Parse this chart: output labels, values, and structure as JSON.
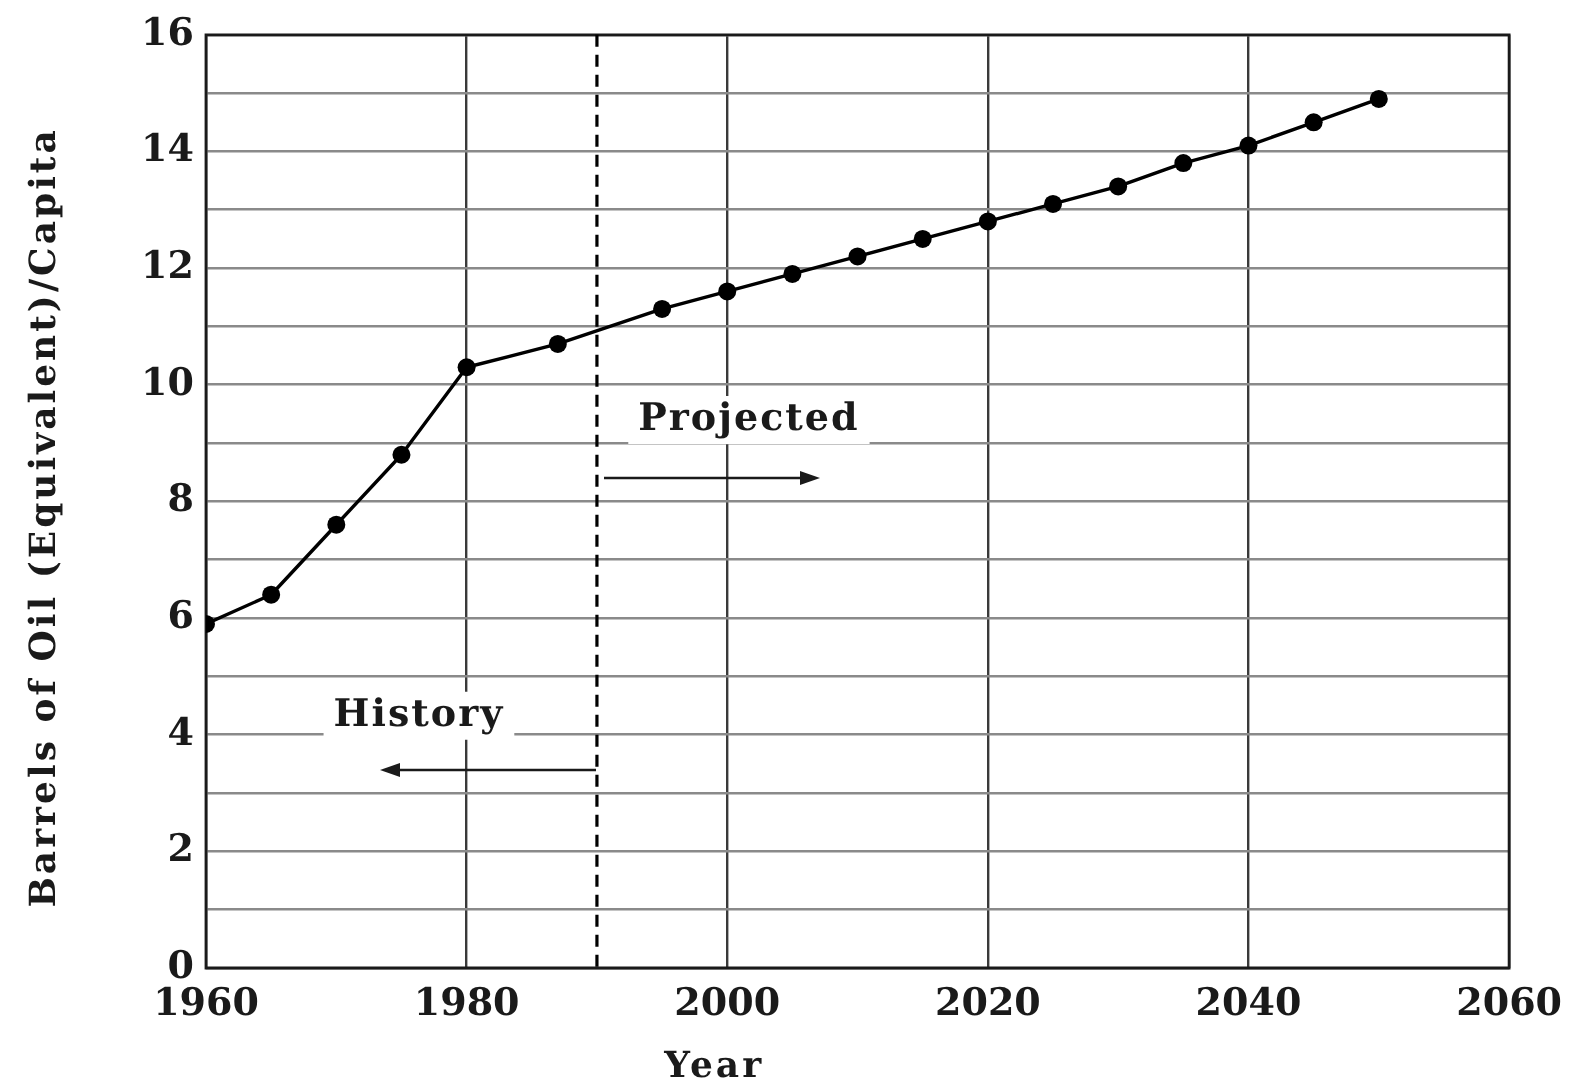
{
  "chart_data": {
    "type": "line",
    "xlabel": "Year",
    "ylabel": "Barrels of Oil (Equivalent)/Capita",
    "x": [
      1960,
      1965,
      1970,
      1975,
      1980,
      1987,
      1995,
      2000,
      2005,
      2010,
      2015,
      2020,
      2025,
      2030,
      2035,
      2040,
      2045,
      2050
    ],
    "series": [
      {
        "color": "#000000",
        "values": [
          5.9,
          6.4,
          7.6,
          8.8,
          10.3,
          10.7,
          11.3,
          11.6,
          11.9,
          12.2,
          12.5,
          12.8,
          13.1,
          13.4,
          13.8,
          14.1,
          14.5,
          14.9
        ]
      }
    ],
    "xlim": [
      1960,
      2060
    ],
    "xticks": [
      1960,
      1980,
      2000,
      2020,
      2040,
      2060
    ],
    "ylim": [
      0,
      16
    ],
    "yticks": [
      0,
      {
        "value": 1,
        "label": null
      },
      2,
      {
        "value": 3,
        "label": null
      },
      4,
      {
        "value": 5,
        "label": null
      },
      6,
      {
        "value": 7,
        "label": null
      },
      8,
      {
        "value": 9,
        "label": null
      },
      10,
      {
        "value": 11,
        "label": null
      },
      12,
      {
        "value": 13,
        "label": null
      },
      14,
      {
        "value": 15,
        "label": null
      },
      16
    ],
    "grid": true,
    "marker": "circle",
    "line_style": "solid",
    "ref_lines": [
      {
        "axis": "x",
        "value": 1990,
        "line_style": "dashed",
        "color": "#000000"
      }
    ],
    "annotations": [
      {
        "text": "History",
        "x": 1990,
        "y": 3.4
      },
      {
        "text": "Projected",
        "x": 1990,
        "y": 8.4
      }
    ]
  }
}
